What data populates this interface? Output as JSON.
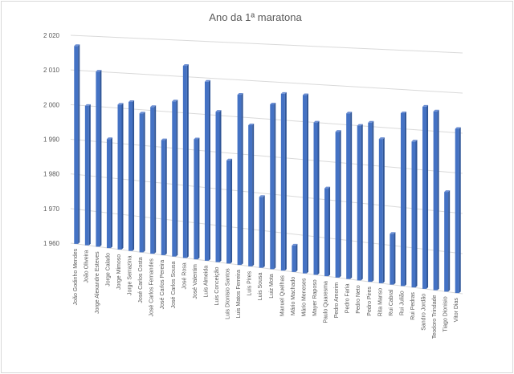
{
  "chart_data": {
    "type": "bar",
    "title": "Ano da 1ª maratona",
    "xlabel": "",
    "ylabel": "",
    "ylim": [
      1960,
      2020
    ],
    "yticks": [
      1960,
      1970,
      1980,
      1990,
      2000,
      2010,
      2020
    ],
    "ytick_labels": [
      "1 960",
      "1 970",
      "1 980",
      "1 990",
      "2 000",
      "2 010",
      "2 020"
    ],
    "grid": true,
    "bar_color": "#4472c4",
    "categories": [
      "João Godinho Mendes",
      "João Oliveira",
      "Jorge Alexandre Esteves",
      "Jorge Calado",
      "Jorge Mimoso",
      "Jorge Serrazina",
      "José Carlos Costa",
      "José Carlos Fernandes",
      "José Carlos Pereira",
      "José Carlos Sousa",
      "José Rosa",
      "José Valentim",
      "Luis Almeida",
      "Luis Conceição",
      "Luis Dionisio Santos",
      "Luis Matos Ferreira",
      "Luis Pires",
      "Luis Sousa",
      "Luiz Mota",
      "Manuel Quelhas",
      "Mário Machado",
      "Mário Meneses",
      "Mayer Raposo",
      "Paulo Quaresma",
      "Pedro Amorim",
      "Pedro Faria",
      "Pedro Neto",
      "Pedro Pires",
      "Rita Manso",
      "Rui Cabral",
      "Rui Julião",
      "Rui Pedras",
      "Sandro Jordão",
      "Teodoro Trindade",
      "Tiago Dionisio",
      "Vitor Dias"
    ],
    "values": [
      2017,
      2000,
      2010,
      1991,
      2001,
      2002,
      1999,
      2001,
      1992,
      2003,
      2013,
      1993,
      2009,
      2001,
      1988,
      2006,
      1998,
      1979,
      2004,
      2007,
      1967,
      2007,
      2000,
      1983,
      1998,
      2003,
      2000,
      2001,
      1997,
      1973,
      2004,
      1997,
      2006,
      2005,
      1985,
      2001
    ]
  }
}
